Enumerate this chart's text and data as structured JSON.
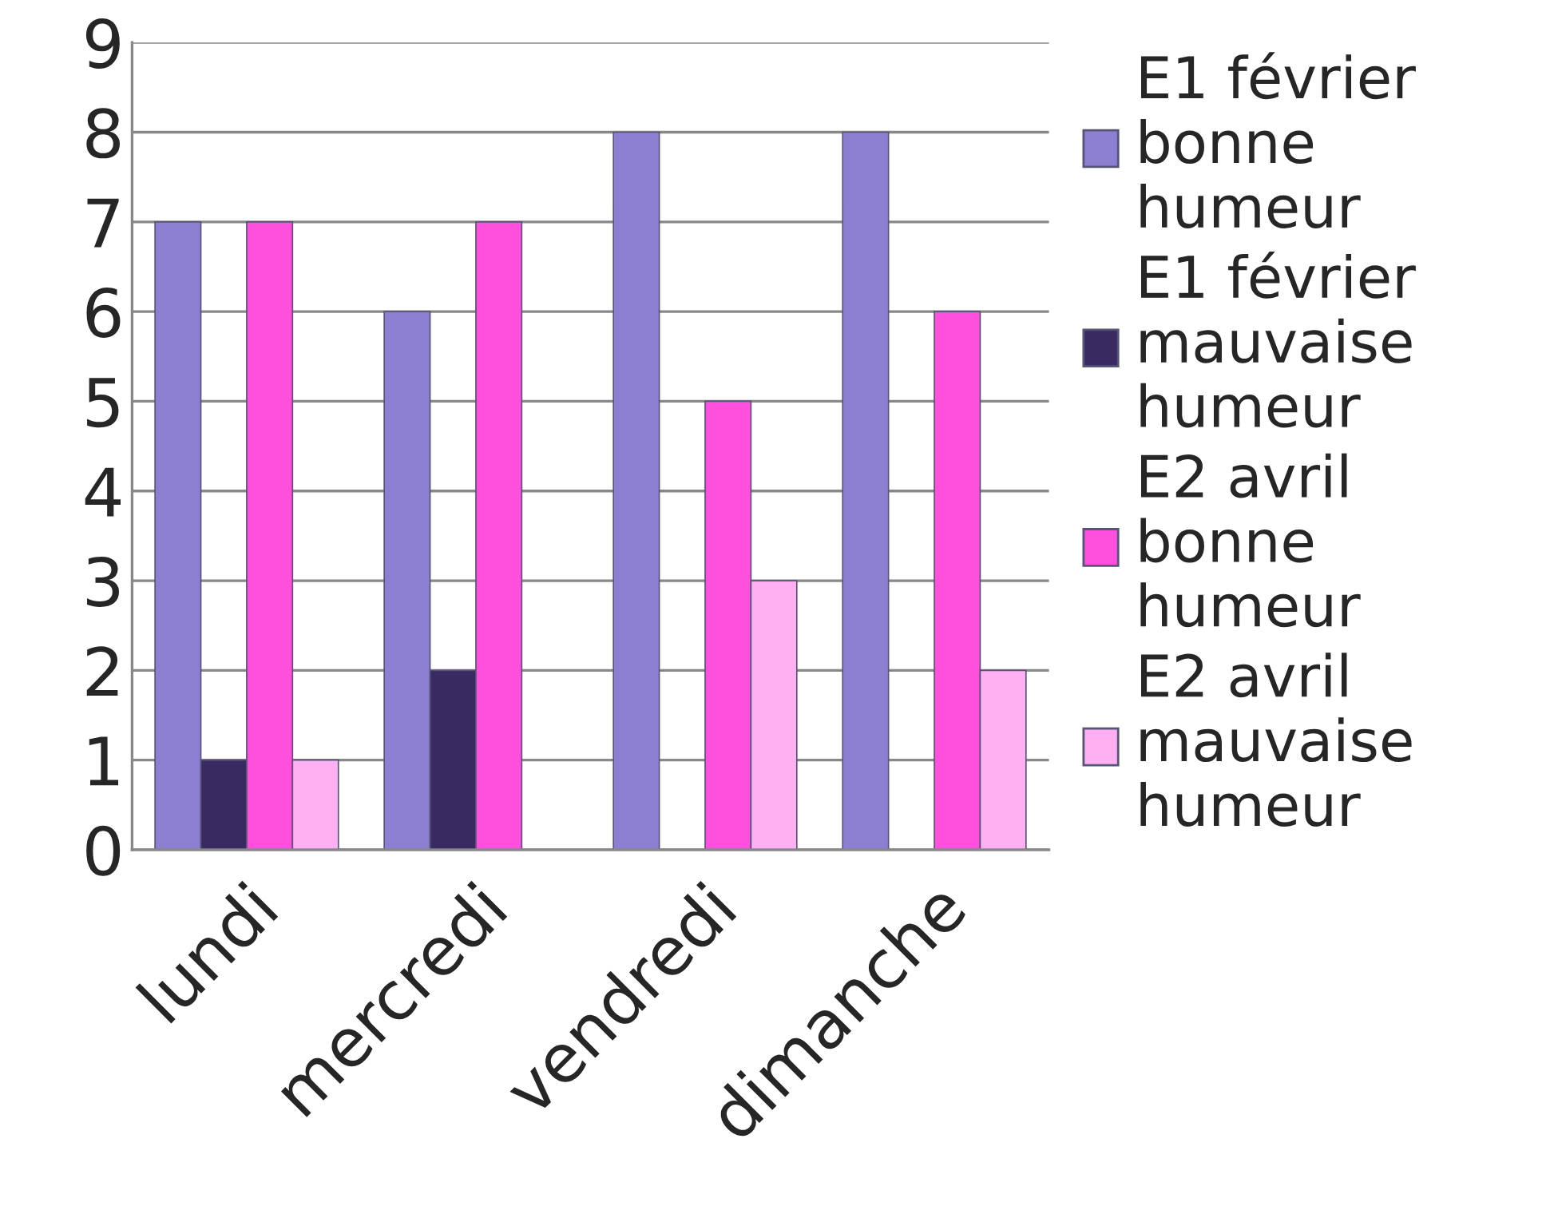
{
  "chart_data": {
    "type": "bar",
    "categories": [
      "lundi",
      "mercredi",
      "vendredi",
      "dimanche"
    ],
    "series": [
      {
        "name": "E1 février bonne humeur",
        "color": "#8c7fd2",
        "values": [
          7,
          6,
          8,
          8
        ]
      },
      {
        "name": "E1 février mauvaise humeur",
        "color": "#3a2a62",
        "values": [
          1,
          2,
          null,
          null
        ]
      },
      {
        "name": "E2 avril bonne humeur",
        "color": "#ff4fdc",
        "values": [
          7,
          7,
          5,
          6
        ]
      },
      {
        "name": "E2 avril mauvaise humeur",
        "color": "#ffb0f2",
        "values": [
          1,
          null,
          3,
          2
        ]
      }
    ],
    "ylim": [
      0,
      9
    ],
    "yticks": [
      0,
      1,
      2,
      3,
      4,
      5,
      6,
      7,
      8,
      9
    ],
    "grid": "y",
    "legend": "right"
  }
}
